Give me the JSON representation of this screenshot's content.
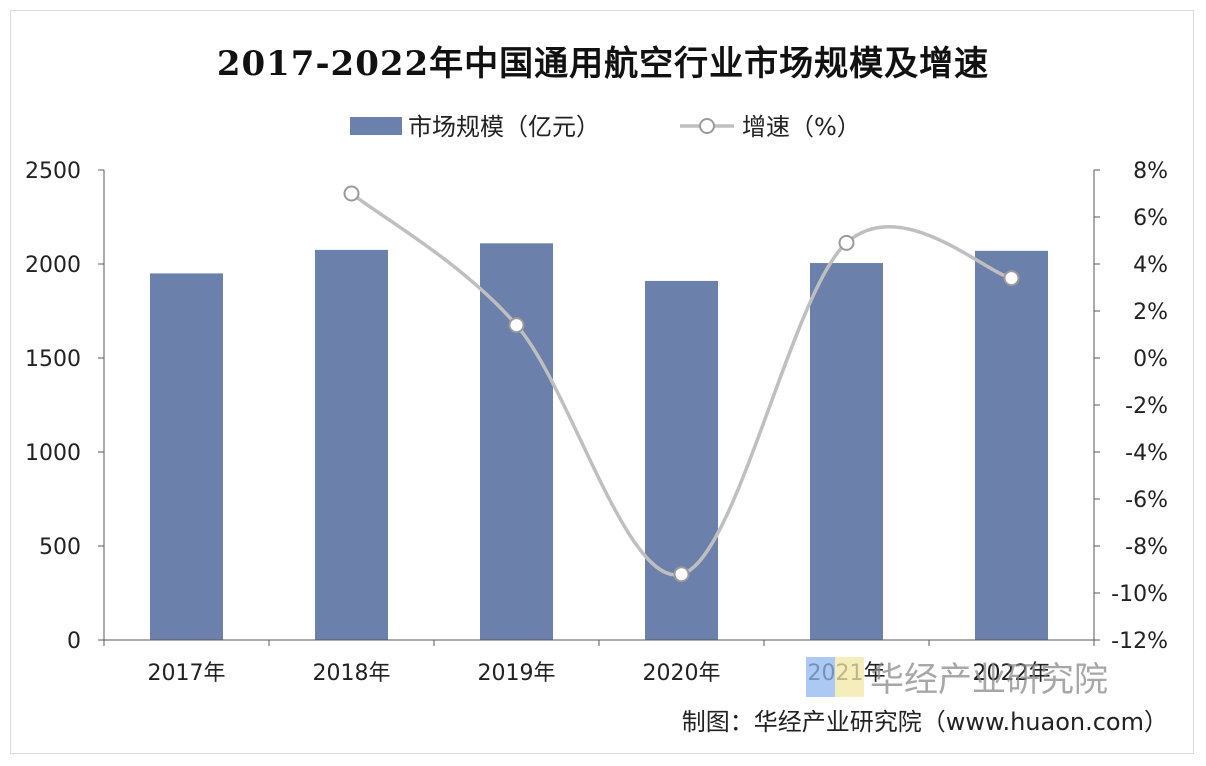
{
  "title": "2017-2022年中国通用航空行业市场规模及增速",
  "source": "制图：华经产业研究院（www.huaon.com）",
  "watermark": "华经产业研究院",
  "colors": {
    "bar": "#6b80aa",
    "line": "#bfbfbf",
    "axis": "#595959"
  },
  "chart_data": {
    "type": "bar",
    "categories": [
      "2017年",
      "2018年",
      "2019年",
      "2020年",
      "2021年",
      "2022年"
    ],
    "series": [
      {
        "name": "市场规模（亿元）",
        "type": "bar",
        "axis": "left",
        "values": [
          1950,
          2075,
          2110,
          1910,
          2005,
          2070
        ]
      },
      {
        "name": "增速（%）",
        "type": "line",
        "axis": "right",
        "values": [
          null,
          7.0,
          1.4,
          -9.2,
          4.9,
          3.4
        ]
      }
    ],
    "y_left": {
      "ylim": [
        0,
        2500
      ],
      "ticks": [
        "0",
        "500",
        "1000",
        "1500",
        "2000",
        "2500"
      ]
    },
    "y_right": {
      "ylim": [
        -12,
        8
      ],
      "ticks": [
        "-12%",
        "-10%",
        "-8%",
        "-6%",
        "-4%",
        "-2%",
        "0%",
        "2%",
        "4%",
        "6%",
        "8%"
      ]
    },
    "legend": "top-center",
    "grid": false
  }
}
